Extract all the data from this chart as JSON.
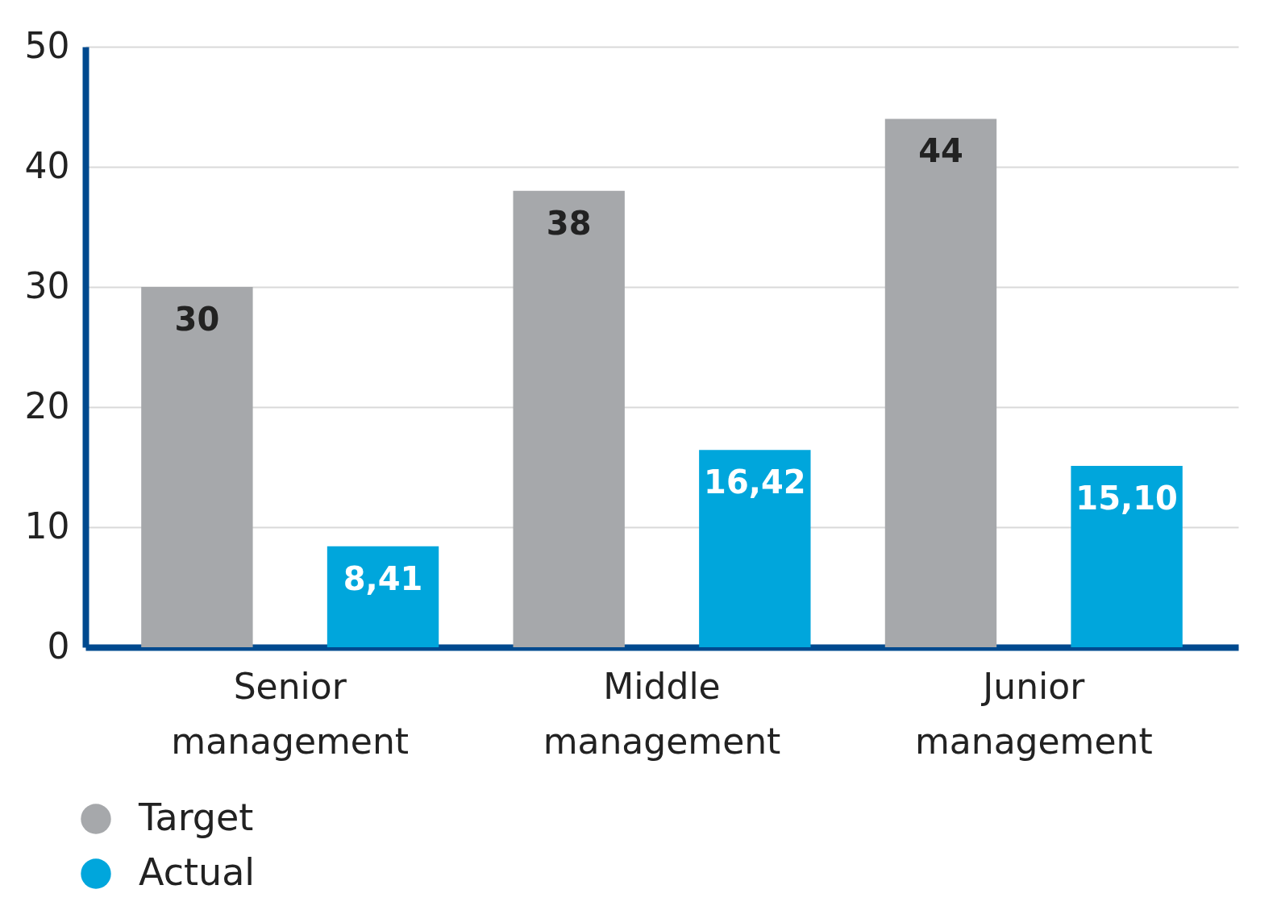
{
  "chart_data": {
    "type": "bar",
    "categories": [
      "Senior management",
      "Middle management",
      "Junior management"
    ],
    "series": [
      {
        "name": "Target",
        "color": "#a6a8ab",
        "values": [
          30,
          38,
          44
        ],
        "value_labels": [
          "30",
          "38",
          "44"
        ]
      },
      {
        "name": "Actual",
        "color": "#00a6dc",
        "values": [
          8.41,
          16.42,
          15.1
        ],
        "value_labels": [
          "8,41",
          "16,42",
          "15,10"
        ]
      }
    ],
    "ylim": [
      0,
      50
    ],
    "yticks": [
      0,
      10,
      20,
      30,
      40,
      50
    ],
    "grid": "y",
    "legend": "bottom left"
  }
}
